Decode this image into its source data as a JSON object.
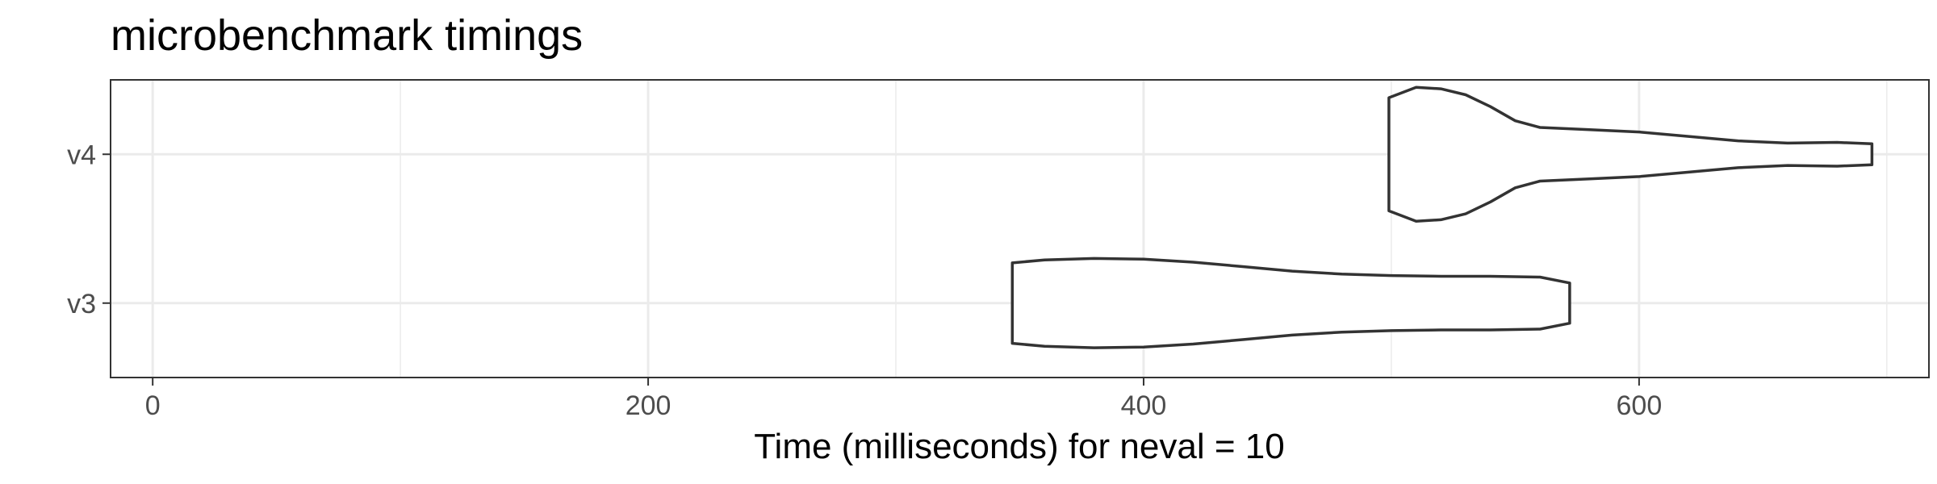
{
  "chart_data": {
    "type": "violin",
    "title": "microbenchmark timings",
    "xlabel": "Time (milliseconds) for neval = 10",
    "ylabel": "",
    "xlim": [
      -17,
      717
    ],
    "x_ticks": [
      0,
      200,
      400,
      600
    ],
    "x_minor_ticks": [
      100,
      300,
      500,
      700
    ],
    "categories": [
      "v3",
      "v4"
    ],
    "grid": true,
    "colors": {
      "outline": "#333333",
      "grid": "#ebebeb",
      "panel_border": "#333333",
      "fill": "#ffffff"
    },
    "series": [
      {
        "category": "v3",
        "min": 347,
        "max": 572,
        "density": [
          [
            347,
            0.54
          ],
          [
            360,
            0.58
          ],
          [
            380,
            0.6
          ],
          [
            400,
            0.59
          ],
          [
            420,
            0.55
          ],
          [
            440,
            0.49
          ],
          [
            460,
            0.43
          ],
          [
            480,
            0.39
          ],
          [
            500,
            0.37
          ],
          [
            520,
            0.36
          ],
          [
            540,
            0.36
          ],
          [
            560,
            0.35
          ],
          [
            572,
            0.27
          ]
        ]
      },
      {
        "category": "v4",
        "min": 499,
        "max": 694,
        "density": [
          [
            499,
            0.76
          ],
          [
            510,
            0.9
          ],
          [
            520,
            0.88
          ],
          [
            530,
            0.8
          ],
          [
            540,
            0.64
          ],
          [
            550,
            0.45
          ],
          [
            560,
            0.36
          ],
          [
            580,
            0.33
          ],
          [
            600,
            0.3
          ],
          [
            620,
            0.24
          ],
          [
            640,
            0.18
          ],
          [
            660,
            0.15
          ],
          [
            680,
            0.16
          ],
          [
            694,
            0.14
          ]
        ]
      }
    ]
  }
}
